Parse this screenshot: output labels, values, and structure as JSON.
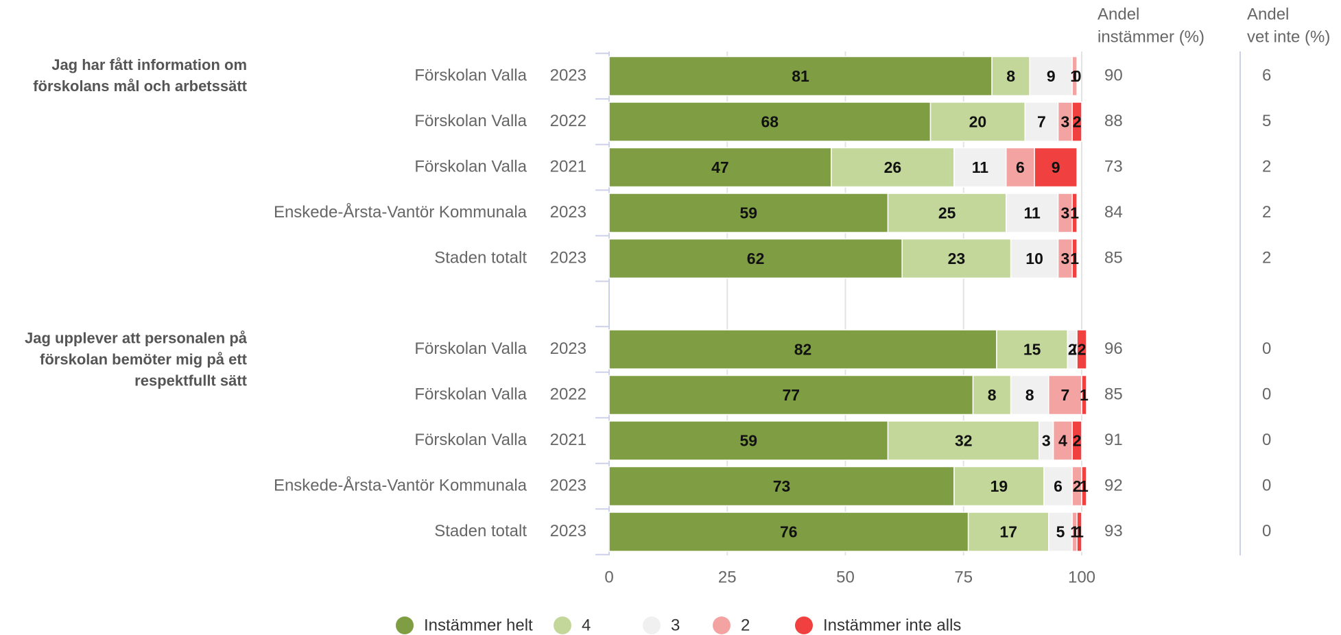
{
  "chart_data": {
    "type": "stacked-bar-horizontal",
    "groups": [
      {
        "question": [
          "Jag har fått information om",
          "förskolans mål och arbetssätt"
        ],
        "rows": [
          {
            "label": "Förskolan Valla",
            "year": "2023",
            "andel": 90,
            "vet_inte": 6
          },
          {
            "label": "Förskolan Valla",
            "year": "2022",
            "andel": 88,
            "vet_inte": 5
          },
          {
            "label": "Förskolan Valla",
            "year": "2021",
            "andel": 73,
            "vet_inte": 2
          },
          {
            "label": "Enskede-Årsta-Vantör Kommunala",
            "year": "2023",
            "andel": 84,
            "vet_inte": 2
          },
          {
            "label": "Staden totalt",
            "year": "2023",
            "andel": 85,
            "vet_inte": 2
          }
        ]
      },
      {
        "question": [
          "Jag upplever att personalen på",
          "förskolan bemöter mig på ett",
          "respektfullt sätt"
        ],
        "rows": [
          {
            "label": "Förskolan Valla",
            "year": "2023",
            "andel": 96,
            "vet_inte": 0
          },
          {
            "label": "Förskolan Valla",
            "year": "2022",
            "andel": 85,
            "vet_inte": 0
          },
          {
            "label": "Förskolan Valla",
            "year": "2021",
            "andel": 91,
            "vet_inte": 0
          },
          {
            "label": "Enskede-Årsta-Vantör Kommunala",
            "year": "2023",
            "andel": 92,
            "vet_inte": 0
          },
          {
            "label": "Staden totalt",
            "year": "2023",
            "andel": 93,
            "vet_inte": 0
          }
        ]
      }
    ],
    "series": [
      {
        "name": "Instämmer helt",
        "color": "#7f9e43",
        "values": [
          [
            81,
            68,
            47,
            59,
            62
          ],
          [
            82,
            77,
            59,
            73,
            76
          ]
        ]
      },
      {
        "name": "4",
        "color": "#c3d79b",
        "values": [
          [
            8,
            20,
            26,
            25,
            23
          ],
          [
            15,
            8,
            32,
            19,
            17
          ]
        ]
      },
      {
        "name": "3",
        "color": "#f0f0f0",
        "values": [
          [
            9,
            7,
            11,
            11,
            10
          ],
          [
            2,
            8,
            3,
            6,
            5
          ]
        ]
      },
      {
        "name": "2",
        "color": "#f4a3a3",
        "values": [
          [
            1,
            3,
            6,
            3,
            3
          ],
          [
            0,
            7,
            4,
            2,
            1
          ]
        ]
      },
      {
        "name": "Instämmer inte alls",
        "color": "#f04040",
        "values": [
          [
            0,
            2,
            9,
            1,
            1
          ],
          [
            2,
            1,
            2,
            1,
            1
          ]
        ]
      }
    ],
    "andel_header": [
      "Andel",
      "instämmer (%)"
    ],
    "vet_inte_header": [
      "Andel",
      "vet inte (%)"
    ],
    "xlim": [
      0,
      100
    ],
    "xticks": [
      0,
      25,
      50,
      75,
      100
    ],
    "grid": true
  }
}
